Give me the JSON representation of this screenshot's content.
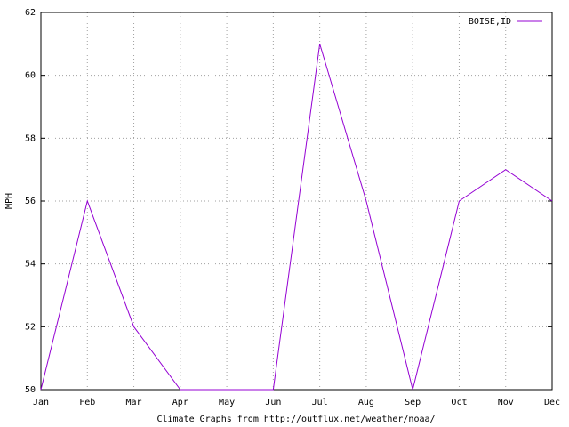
{
  "chart_data": {
    "type": "line",
    "x_label": "Climate Graphs from http://outflux.net/weather/noaa/",
    "y_label": "MPH",
    "categories": [
      "Jan",
      "Feb",
      "Mar",
      "Apr",
      "May",
      "Jun",
      "Jul",
      "Aug",
      "Sep",
      "Oct",
      "Nov",
      "Dec"
    ],
    "series": [
      {
        "name": "BOISE,ID",
        "color": "#9400d3",
        "values": [
          50,
          56,
          52,
          50,
          50,
          50,
          61,
          56,
          50,
          56,
          57,
          56
        ]
      }
    ],
    "ylim": [
      50,
      62
    ],
    "yticks": [
      50,
      52,
      54,
      56,
      58,
      60,
      62
    ],
    "grid": true,
    "legend": "top-right"
  }
}
